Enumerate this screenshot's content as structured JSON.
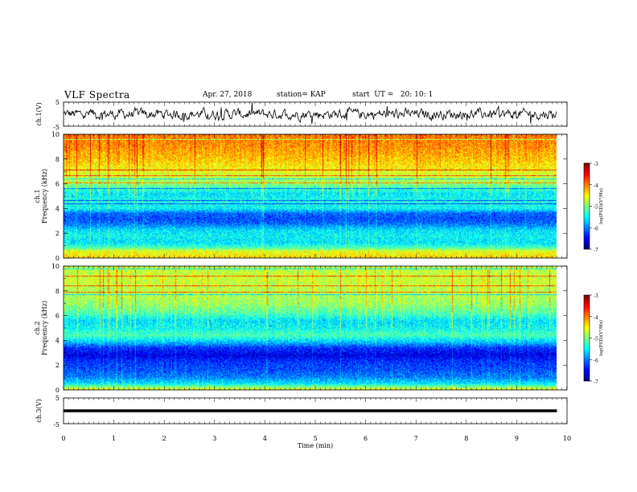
{
  "header": {
    "title": "VLF Spectra",
    "date": "Apr. 27, 2018",
    "station": "station= KAP",
    "start": "start  UT =   20: 10: 1"
  },
  "chart_data": {
    "type": "heatmap",
    "title": "VLF Spectra",
    "x_axis": {
      "label": "Time (min)",
      "range": [
        0,
        10
      ],
      "ticks": [
        "0",
        "1",
        "2",
        "3",
        "4",
        "5",
        "6",
        "7",
        "8",
        "9",
        "10"
      ],
      "data_extent_max": 9.8
    },
    "panels": [
      {
        "id": "ch1_waveform",
        "type": "line",
        "ylabel": "ch.1(V)",
        "ylim": [
          -5,
          5
        ],
        "ytick_labels": [
          "5",
          "-5"
        ],
        "line_color": "#000000"
      },
      {
        "id": "ch1_spectrogram",
        "type": "heatmap",
        "ylabel": "ch.1\nFrequency (kHz)",
        "ylabel_lines": [
          "ch.1",
          "Frequency (kHz)"
        ],
        "ylim": [
          0,
          10
        ],
        "ytick_labels": [
          "0",
          "2",
          "4",
          "6",
          "8",
          "10"
        ],
        "colorbar": {
          "label": "log(PSD)(V²/Hz)",
          "range": [
            -7,
            -3
          ],
          "ticks": [
            "-3",
            "-4",
            "-5",
            "-6",
            "-7"
          ]
        },
        "frequency_profile_log_psd": [
          {
            "f": 0.0,
            "v": -4.4
          },
          {
            "f": 0.5,
            "v": -4.6
          },
          {
            "f": 0.8,
            "v": -5.2
          },
          {
            "f": 1.2,
            "v": -5.6
          },
          {
            "f": 1.8,
            "v": -5.5
          },
          {
            "f": 2.2,
            "v": -5.6
          },
          {
            "f": 2.8,
            "v": -6.1
          },
          {
            "f": 3.2,
            "v": -6.2
          },
          {
            "f": 3.6,
            "v": -6.1
          },
          {
            "f": 4.0,
            "v": -5.5
          },
          {
            "f": 4.6,
            "v": -5.4
          },
          {
            "f": 5.2,
            "v": -5.6
          },
          {
            "f": 5.6,
            "v": -5.3
          },
          {
            "f": 6.0,
            "v": -5.0
          },
          {
            "f": 7.0,
            "v": -4.6
          },
          {
            "f": 8.0,
            "v": -4.3
          },
          {
            "f": 9.0,
            "v": -4.1
          },
          {
            "f": 10.0,
            "v": -4.0
          }
        ]
      },
      {
        "id": "ch2_spectrogram",
        "type": "heatmap",
        "ylabel": "ch.2\nFrequency (kHz)",
        "ylabel_lines": [
          "ch.2",
          "Frequency (kHz)"
        ],
        "ylim": [
          0,
          10
        ],
        "ytick_labels": [
          "0",
          "2",
          "4",
          "6",
          "8",
          "10"
        ],
        "colorbar": {
          "label": "log(PSD)(V²/Hz)",
          "range": [
            -7,
            -3
          ],
          "ticks": [
            "-3",
            "-4",
            "-5",
            "-6",
            "-7"
          ]
        },
        "frequency_profile_log_psd": [
          {
            "f": 0.0,
            "v": -4.6
          },
          {
            "f": 0.5,
            "v": -5.6
          },
          {
            "f": 1.0,
            "v": -6.0
          },
          {
            "f": 1.6,
            "v": -6.2
          },
          {
            "f": 2.2,
            "v": -6.3
          },
          {
            "f": 2.8,
            "v": -6.6
          },
          {
            "f": 3.4,
            "v": -6.3
          },
          {
            "f": 3.8,
            "v": -5.8
          },
          {
            "f": 4.4,
            "v": -5.2
          },
          {
            "f": 5.0,
            "v": -5.5
          },
          {
            "f": 5.6,
            "v": -5.6
          },
          {
            "f": 6.2,
            "v": -5.2
          },
          {
            "f": 7.0,
            "v": -4.9
          },
          {
            "f": 8.0,
            "v": -4.8
          },
          {
            "f": 9.0,
            "v": -4.7
          },
          {
            "f": 10.0,
            "v": -4.8
          }
        ]
      },
      {
        "id": "ch3_waveform",
        "type": "line",
        "ylabel": "ch.3(V)",
        "ylim": [
          -5,
          5
        ],
        "ytick_labels": [
          "5",
          "-5"
        ],
        "constant_value": 0
      }
    ],
    "grid": false,
    "legend": "colorbar-right"
  }
}
